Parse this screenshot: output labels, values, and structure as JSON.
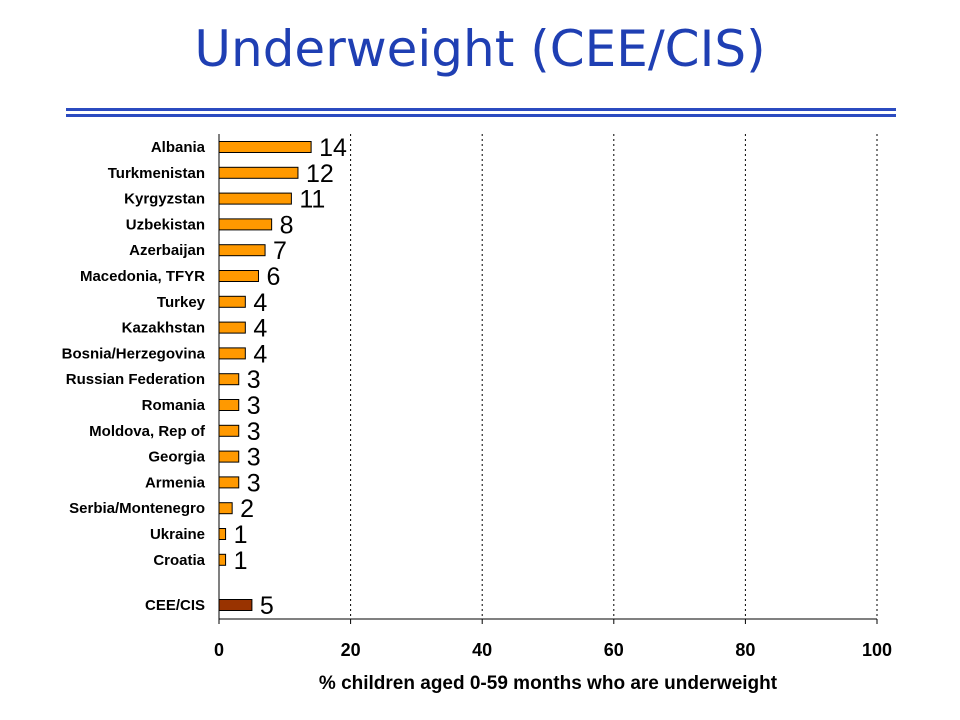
{
  "slide": {
    "title": "Underweight (CEE/CIS)"
  },
  "colors": {
    "title": "#1f3fb3",
    "bar": "#ff9900",
    "summary_bar": "#993300",
    "grid": "#000000"
  },
  "chart_data": {
    "type": "bar",
    "orientation": "horizontal",
    "title": "",
    "xlabel": "% children aged 0-59 months who are underweight",
    "ylabel": "",
    "xlim": [
      0,
      100
    ],
    "xticks": [
      0,
      20,
      40,
      60,
      80,
      100
    ],
    "grid": "vertical dotted",
    "categories": [
      "Albania",
      "Turkmenistan",
      "Kyrgyzstan",
      "Uzbekistan",
      "Azerbaijan",
      "Macedonia, TFYR",
      "Turkey",
      "Kazakhstan",
      "Bosnia/Herzegovina",
      "Russian Federation",
      "Romania",
      "Moldova, Rep of",
      "Georgia",
      "Armenia",
      "Serbia/Montenegro",
      "Ukraine",
      "Croatia"
    ],
    "values": [
      14,
      12,
      11,
      8,
      7,
      6,
      4,
      4,
      4,
      3,
      3,
      3,
      3,
      3,
      2,
      1,
      1
    ],
    "summary": {
      "category": "CEE/CIS",
      "value": 5
    }
  }
}
